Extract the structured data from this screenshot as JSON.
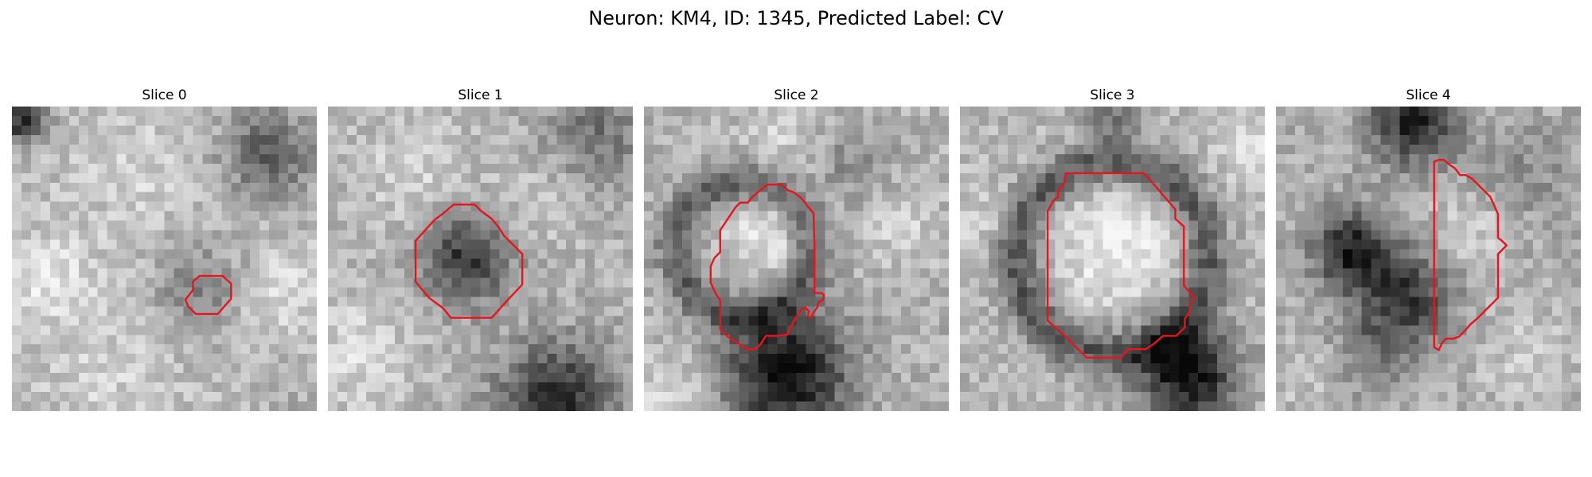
{
  "figure": {
    "title": "Neuron: KM4, ID: 1345, Predicted Label: CV"
  },
  "panels": [
    {
      "title": "Slice 0"
    },
    {
      "title": "Slice 1"
    },
    {
      "title": "Slice 2"
    },
    {
      "title": "Slice 3"
    },
    {
      "title": "Slice 4"
    }
  ],
  "colors": {
    "contour": "#e8141c",
    "colormap": "gray"
  }
}
